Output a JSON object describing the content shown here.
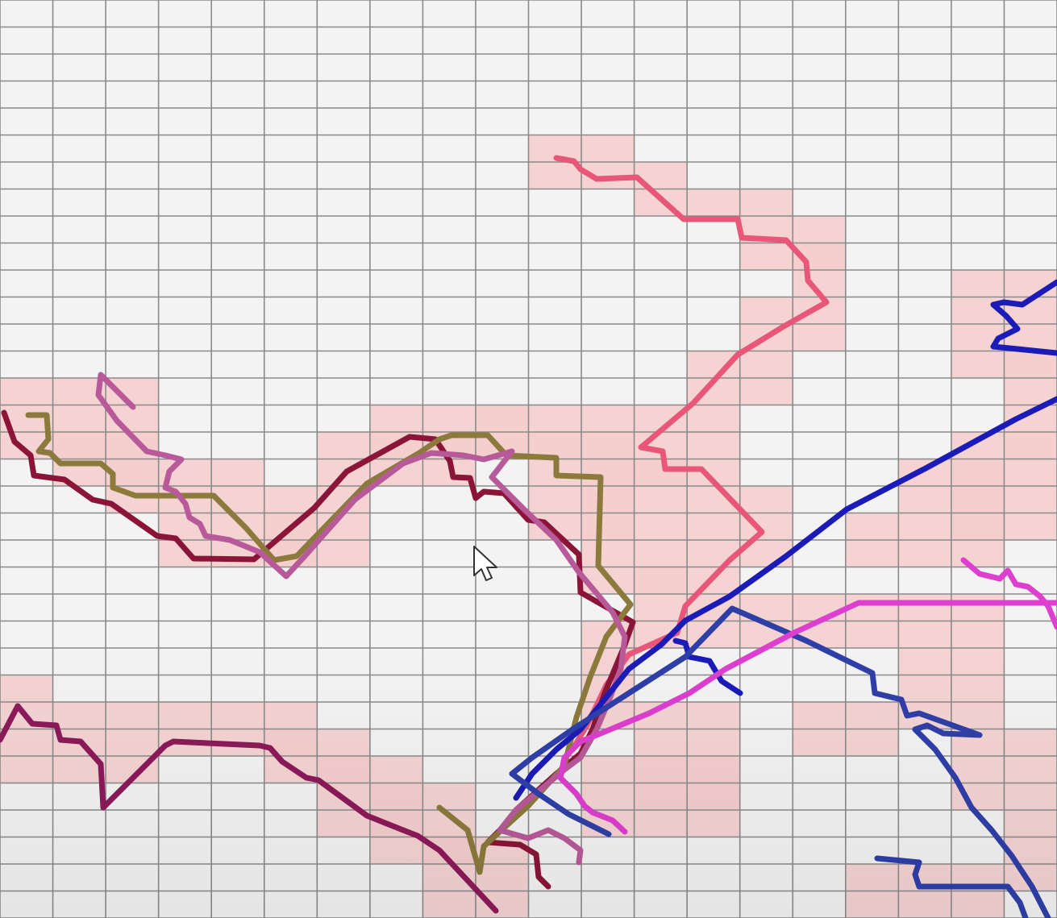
{
  "canvas": {
    "background": "#f3f3f3",
    "grid_line_color": "#8a8a8a",
    "highlight_color": "#f4cccc"
  },
  "grid": {
    "columns": 20,
    "rows": 34
  },
  "cursor": {
    "icon": "mouse-pointer-icon",
    "color": "#ffffff"
  },
  "trails": [
    {
      "name": "salmon-pink-trail",
      "color": "#e8577a"
    },
    {
      "name": "dark-maroon-trail",
      "color": "#8a1538"
    },
    {
      "name": "olive-trail",
      "color": "#8c7a3c"
    },
    {
      "name": "mauve-trail",
      "color": "#b85a99"
    },
    {
      "name": "plum-trail",
      "color": "#8c1a5a"
    },
    {
      "name": "navy-blue-trail",
      "color": "#1b1bb8"
    },
    {
      "name": "slate-blue-trail",
      "color": "#2f3fa8"
    },
    {
      "name": "magenta-trail",
      "color": "#dd3fcf"
    }
  ]
}
